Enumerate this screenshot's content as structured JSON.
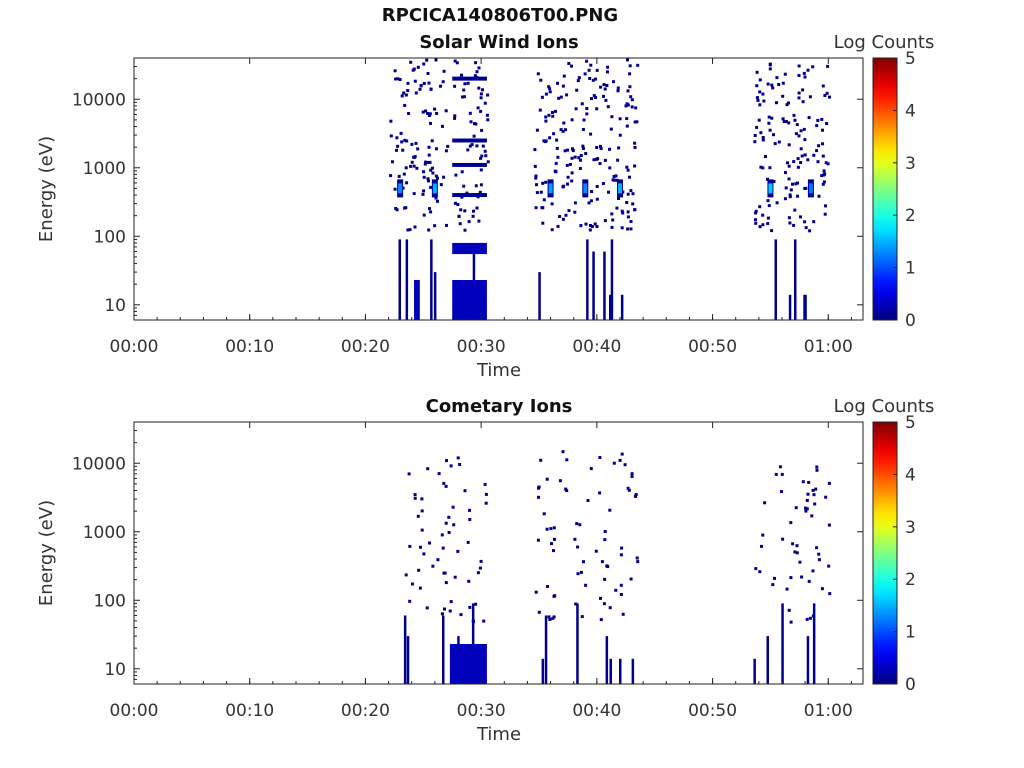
{
  "figure_title": "RPCICA140806T00.PNG",
  "chart_data": [
    {
      "type": "heatmap",
      "title": "Solar Wind Ions",
      "xlabel": "Time",
      "ylabel": "Energy (eV)",
      "y_scale": "log",
      "ylim": [
        6,
        40000
      ],
      "xlim_minutes": [
        0,
        63
      ],
      "x_ticks": [
        "00:00",
        "00:10",
        "00:20",
        "00:30",
        "00:40",
        "00:50",
        "01:00"
      ],
      "y_ticks": [
        "10",
        "100",
        "1000",
        "10000"
      ],
      "colorbar": {
        "label": "Log Counts",
        "min": 0,
        "max": 5,
        "ticks": [
          "0",
          "1",
          "2",
          "3",
          "4",
          "5"
        ]
      },
      "active_intervals_minutes": [
        [
          22,
          27
        ],
        [
          27.5,
          30.5
        ],
        [
          34.5,
          43.5
        ],
        [
          53.5,
          60
        ]
      ],
      "bright_cells": [
        {
          "t": 23,
          "e": 500,
          "log_counts": 1.3
        },
        {
          "t": 26,
          "e": 500,
          "log_counts": 1.5
        },
        {
          "t": 36,
          "e": 500,
          "log_counts": 1.4
        },
        {
          "t": 39,
          "e": 500,
          "log_counts": 1.3
        },
        {
          "t": 42,
          "e": 500,
          "log_counts": 1.5
        },
        {
          "t": 55,
          "e": 500,
          "log_counts": 1.6
        },
        {
          "t": 58.5,
          "e": 500,
          "log_counts": 1.2
        }
      ],
      "blocks": [
        {
          "t0": 27.5,
          "t1": 30.5,
          "e0": 6,
          "e1": 23,
          "log_counts": 0.3
        },
        {
          "t0": 27.5,
          "t1": 30.5,
          "e0": 55,
          "e1": 80,
          "log_counts": 0.3
        },
        {
          "t0": 24.2,
          "t1": 24.7,
          "e0": 6,
          "e1": 23,
          "log_counts": 0.3
        }
      ],
      "lines": [
        {
          "t0": 27.5,
          "t1": 30.5,
          "e": 20000
        },
        {
          "t0": 27.5,
          "t1": 30.5,
          "e": 2500
        },
        {
          "t0": 27.5,
          "t1": 30.5,
          "e": 1100
        },
        {
          "t0": 27.5,
          "t1": 30.5,
          "e": 400
        }
      ]
    },
    {
      "type": "heatmap",
      "title": "Cometary Ions",
      "xlabel": "Time",
      "ylabel": "Energy (eV)",
      "y_scale": "log",
      "ylim": [
        6,
        40000
      ],
      "xlim_minutes": [
        0,
        63
      ],
      "x_ticks": [
        "00:00",
        "00:10",
        "00:20",
        "00:30",
        "00:40",
        "00:50",
        "01:00"
      ],
      "y_ticks": [
        "10",
        "100",
        "1000",
        "10000"
      ],
      "colorbar": {
        "label": "Log Counts",
        "min": 0,
        "max": 5,
        "ticks": [
          "0",
          "1",
          "2",
          "3",
          "4",
          "5"
        ]
      },
      "active_intervals_minutes": [
        [
          23,
          27
        ],
        [
          27,
          30.5
        ],
        [
          34.5,
          43.5
        ],
        [
          53.5,
          60
        ]
      ],
      "bright_cells": [],
      "blocks": [
        {
          "t0": 27.3,
          "t1": 30.5,
          "e0": 6,
          "e1": 23,
          "log_counts": 0.3
        }
      ],
      "lines": []
    }
  ]
}
